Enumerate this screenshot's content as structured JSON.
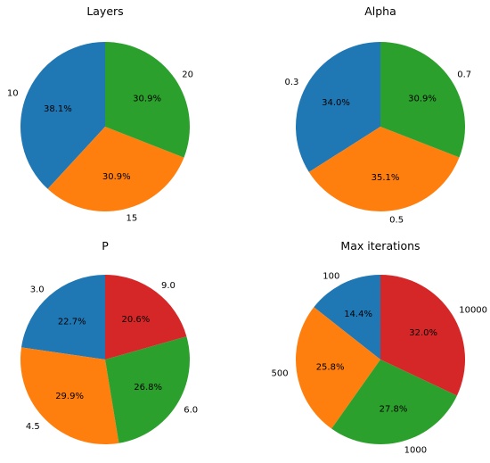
{
  "colors": {
    "c0": "#1f77b4",
    "c1": "#ff7f0e",
    "c2": "#2ca02c",
    "c3": "#d62728"
  },
  "chart_data": [
    {
      "type": "pie",
      "title": "Layers",
      "labels": [
        "10",
        "15",
        "20"
      ],
      "values": [
        38.1,
        30.9,
        30.9
      ],
      "pct_labels": [
        "38.1%",
        "30.9%",
        "30.9%"
      ],
      "startangle": 90,
      "direction": "counterclockwise"
    },
    {
      "type": "pie",
      "title": "Alpha",
      "labels": [
        "0.3",
        "0.5",
        "0.7"
      ],
      "values": [
        34.0,
        35.1,
        30.9
      ],
      "pct_labels": [
        "34.0%",
        "35.1%",
        "30.9%"
      ],
      "startangle": 90,
      "direction": "counterclockwise"
    },
    {
      "type": "pie",
      "title": "P",
      "labels": [
        "3.0",
        "4.5",
        "6.0",
        "9.0"
      ],
      "values": [
        22.7,
        29.9,
        26.8,
        20.6
      ],
      "pct_labels": [
        "22.7%",
        "29.9%",
        "26.8%",
        "20.6%"
      ],
      "startangle": 90,
      "direction": "counterclockwise"
    },
    {
      "type": "pie",
      "title": "Max iterations",
      "labels": [
        "100",
        "500",
        "1000",
        "10000"
      ],
      "values": [
        14.4,
        25.8,
        27.8,
        32.0
      ],
      "pct_labels": [
        "14.4%",
        "25.8%",
        "27.8%",
        "32.0%"
      ],
      "startangle": 90,
      "direction": "counterclockwise"
    }
  ]
}
